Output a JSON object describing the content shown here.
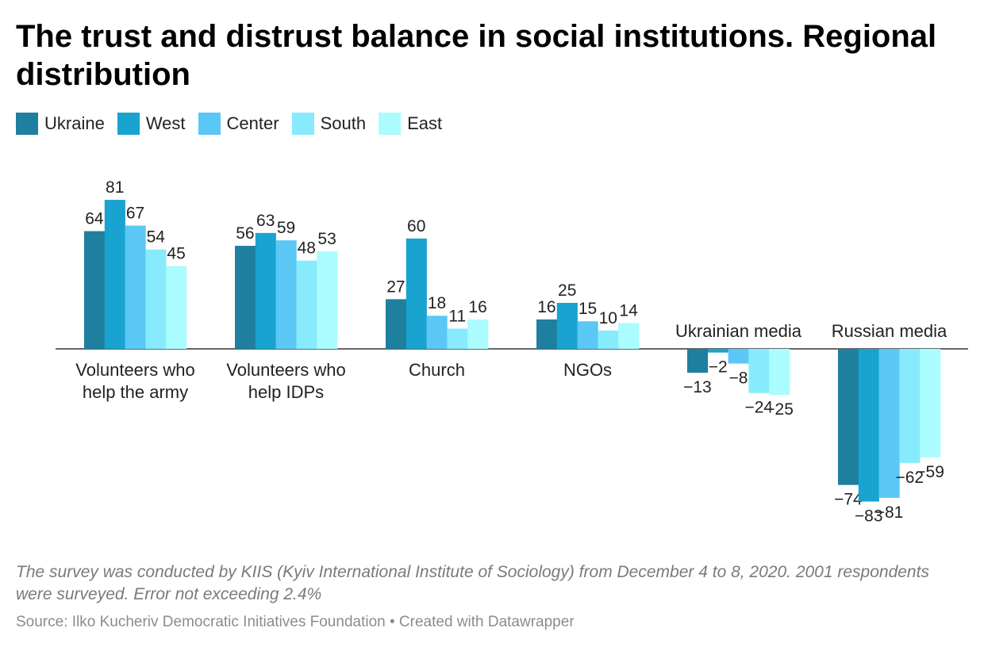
{
  "chart_data": {
    "type": "bar",
    "title": "The trust and distrust balance in social institutions. Regional distribution",
    "categories": [
      [
        "Volunteers who",
        "help the army"
      ],
      [
        "Volunteers who",
        "help IDPs"
      ],
      [
        "Church"
      ],
      [
        "NGOs"
      ],
      [
        "Ukrainian media"
      ],
      [
        "Russian media"
      ]
    ],
    "series": [
      {
        "name": "Ukraine",
        "color": "#1f7f9e",
        "values": [
          64,
          56,
          27,
          16,
          -13,
          -74
        ]
      },
      {
        "name": "West",
        "color": "#18a3d0",
        "values": [
          81,
          63,
          60,
          25,
          -2,
          -83
        ]
      },
      {
        "name": "Center",
        "color": "#5bc7f5",
        "values": [
          67,
          59,
          18,
          15,
          -8,
          -81
        ]
      },
      {
        "name": "South",
        "color": "#87ebfd",
        "values": [
          54,
          48,
          11,
          10,
          -24,
          -62
        ]
      },
      {
        "name": "East",
        "color": "#aafcfe",
        "values": [
          45,
          53,
          16,
          14,
          -25,
          -59
        ]
      }
    ],
    "ylim": [
      -88,
      90
    ],
    "xlabel": "",
    "ylabel": "",
    "grid": false,
    "legend": "top-left",
    "zero_line_color": "#333333"
  },
  "note": "The survey was conducted by KIIS (Kyiv International Institute of Sociology) from December 4 to 8, 2020. 2001 respondents were surveyed. Error not exceeding 2.4%",
  "source": "Source: Ilko Kucheriv Democratic Initiatives Foundation • Created with Datawrapper"
}
